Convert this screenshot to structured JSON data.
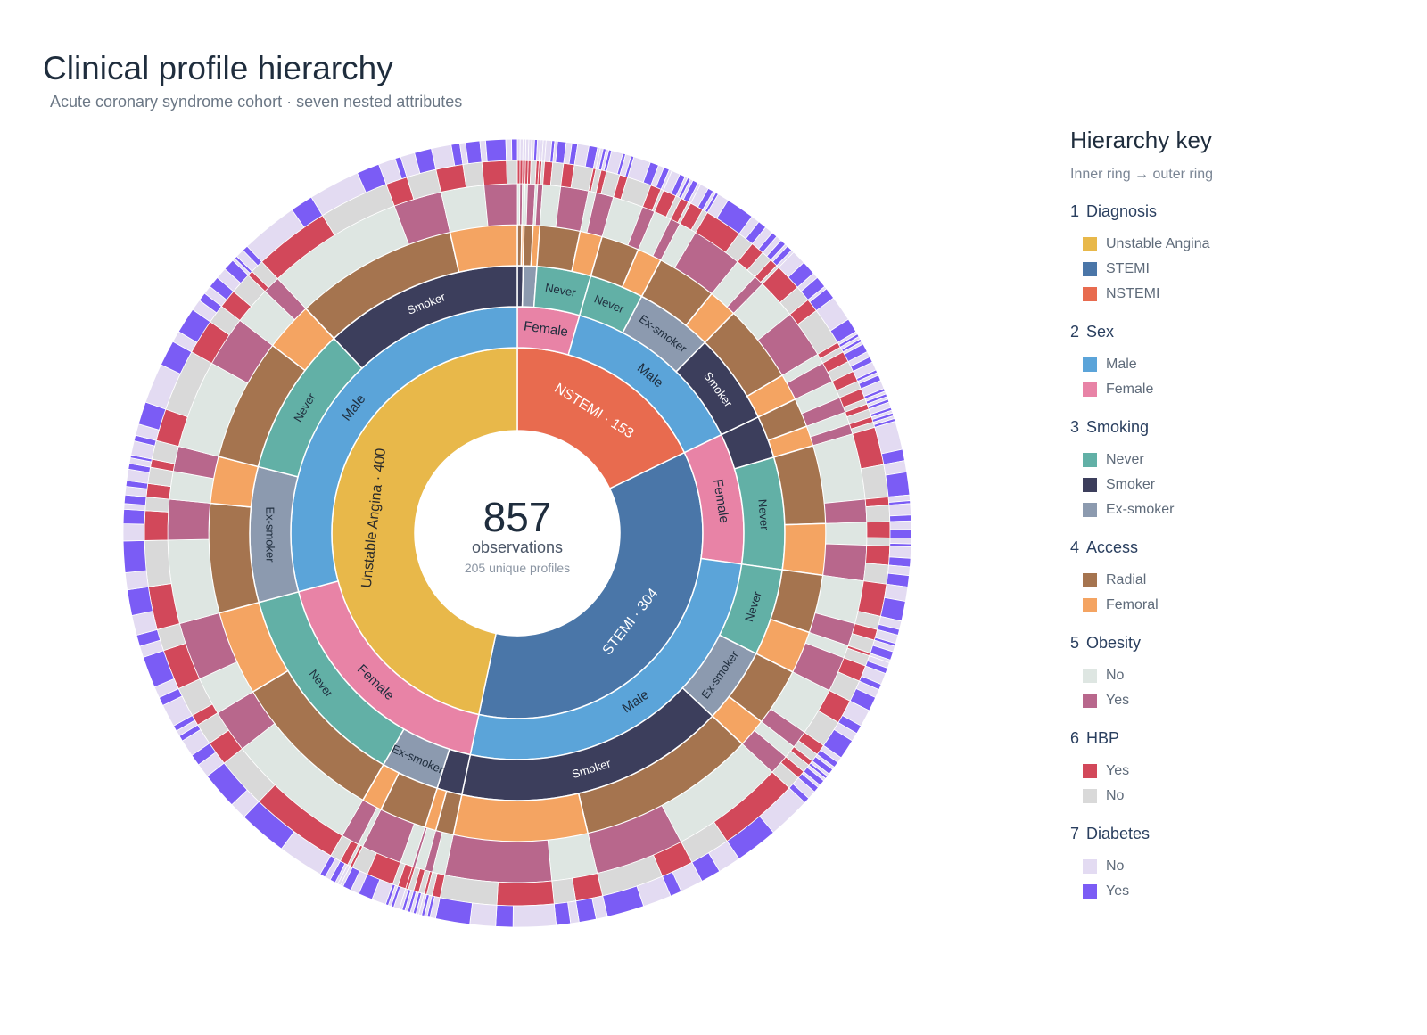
{
  "header": {
    "title": "Clinical profile hierarchy",
    "subtitle": "Acute coronary syndrome cohort · seven nested attributes"
  },
  "center": {
    "value": "857",
    "label": "observations",
    "sublabel": "205 unique profiles"
  },
  "legend": {
    "title": "Hierarchy key",
    "subtitle": "Inner ring → outer ring",
    "groups": [
      {
        "num": "1",
        "name": "Diagnosis",
        "items": [
          {
            "label": "Unstable Angina",
            "color": "#E8B84A"
          },
          {
            "label": "STEMI",
            "color": "#4A76A8"
          },
          {
            "label": "NSTEMI",
            "color": "#E86B4F"
          }
        ]
      },
      {
        "num": "2",
        "name": "Sex",
        "items": [
          {
            "label": "Male",
            "color": "#5BA4D9"
          },
          {
            "label": "Female",
            "color": "#E883A6"
          }
        ]
      },
      {
        "num": "3",
        "name": "Smoking",
        "items": [
          {
            "label": "Never",
            "color": "#62B0A6"
          },
          {
            "label": "Smoker",
            "color": "#3C3E5C"
          },
          {
            "label": "Ex-smoker",
            "color": "#8C9AAF"
          }
        ]
      },
      {
        "num": "4",
        "name": "Access",
        "items": [
          {
            "label": "Radial",
            "color": "#A5744F"
          },
          {
            "label": "Femoral",
            "color": "#F4A462"
          }
        ]
      },
      {
        "num": "5",
        "name": "Obesity",
        "items": [
          {
            "label": "No",
            "color": "#DEE6E2"
          },
          {
            "label": "Yes",
            "color": "#B8678C"
          }
        ]
      },
      {
        "num": "6",
        "name": "HBP",
        "items": [
          {
            "label": "Yes",
            "color": "#D2485A"
          },
          {
            "label": "No",
            "color": "#D9D9D9"
          }
        ]
      },
      {
        "num": "7",
        "name": "Diabetes",
        "items": [
          {
            "label": "No",
            "color": "#E3DBF2"
          },
          {
            "label": "Yes",
            "color": "#7B5CF5"
          }
        ]
      }
    ]
  },
  "chart_data": {
    "type": "sunburst",
    "total": 857,
    "levels": [
      "Diagnosis",
      "Sex",
      "Smoking",
      "Access",
      "Obesity",
      "HBP",
      "Diabetes"
    ],
    "colors": {
      "Diagnosis": {
        "Unstable Angina": "#E8B84A",
        "STEMI": "#4A76A8",
        "NSTEMI": "#E86B4F"
      },
      "Sex": {
        "Male": "#5BA4D9",
        "Female": "#E883A6"
      },
      "Smoking": {
        "Never": "#62B0A6",
        "Smoker": "#3C3E5C",
        "Ex-smoker": "#8C9AAF"
      },
      "Access": {
        "Radial": "#A5744F",
        "Femoral": "#F4A462"
      },
      "Obesity": {
        "No": "#DEE6E2",
        "Yes": "#B8678C"
      },
      "HBP": {
        "Yes": "#D2485A",
        "No": "#D9D9D9"
      },
      "Diabetes": {
        "No": "#E3DBF2",
        "Yes": "#7B5CF5"
      }
    },
    "diagnosis_labels": {
      "Unstable Angina": "Unstable Angina · 400",
      "STEMI": "STEMI · 304",
      "NSTEMI": "NSTEMI · 153"
    },
    "hierarchy": [
      {
        "name": "NSTEMI",
        "value": 153,
        "children": [
          {
            "name": "Female",
            "value": 38,
            "children": [
              {
                "name": "Smoker",
                "value": 3
              },
              {
                "name": "Ex-smoker",
                "value": 7
              },
              {
                "name": "Never",
                "value": 28
              }
            ]
          },
          {
            "name": "Male",
            "value": 115,
            "children": [
              {
                "name": "Never",
                "value": 28
              },
              {
                "name": "Ex-smoker",
                "value": 40
              },
              {
                "name": "Smoker",
                "value": 47
              }
            ]
          }
        ]
      },
      {
        "name": "STEMI",
        "value": 304,
        "children": [
          {
            "name": "Female",
            "value": 80,
            "children": [
              {
                "name": "Smoker",
                "value": 22
              },
              {
                "name": "Never",
                "value": 58
              }
            ]
          },
          {
            "name": "Male",
            "value": 224,
            "children": [
              {
                "name": "Never",
                "value": 45
              },
              {
                "name": "Ex-smoker",
                "value": 39
              },
              {
                "name": "Smoker",
                "value": 140
              }
            ]
          }
        ]
      },
      {
        "name": "Unstable Angina",
        "value": 400,
        "children": [
          {
            "name": "Female",
            "value": 150,
            "children": [
              {
                "name": "Smoker",
                "value": 13
              },
              {
                "name": "Ex-smoker",
                "value": 30
              },
              {
                "name": "Never",
                "value": 107
              }
            ]
          },
          {
            "name": "Male",
            "value": 250,
            "children": [
              {
                "name": "Ex-smoker",
                "value": 70
              },
              {
                "name": "Never",
                "value": 77
              },
              {
                "name": "Smoker",
                "value": 103
              }
            ]
          }
        ]
      }
    ]
  }
}
